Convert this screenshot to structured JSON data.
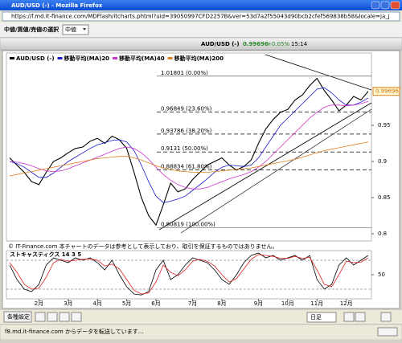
{
  "window": {
    "title": "AUD/USD (-) - Mozilla Firefox",
    "url": "https://f.md.it-finance.com/MDFlash/itcharts.phtml?uid=39050997CFD2257B&ver=53d7a2f55043d90bcb2cfef569838b58&locale=ja_JP&epic=CS.D.AUDUSD.CFJ.IP",
    "status": "f8.md.it-finance.com からデータを転送しています..."
  },
  "toolbar": {
    "price_select_label": "中値/買値/売値の選択",
    "price_select_value": "中値"
  },
  "header": {
    "symbol": "AUD/USD (-)",
    "price": "0.99696",
    "change": "+0.05%",
    "time": "15:14"
  },
  "footer_note": "© IT-Finance.com 本チャートのデータは参考として表示しており、取引を保証するものではありません。",
  "bottom_toolbar": {
    "settings": "各種設定",
    "period": "日足"
  },
  "chart_data": [
    {
      "type": "line",
      "ylim": [
        0.79,
        1.05
      ],
      "yticks": [
        0.8,
        0.85,
        0.9,
        0.95
      ],
      "grid": false,
      "series": [
        {
          "name": "AUD/USD (-)",
          "color": "#000000",
          "values": [
            0.905,
            0.895,
            0.885,
            0.872,
            0.868,
            0.885,
            0.9,
            0.905,
            0.912,
            0.918,
            0.92,
            0.928,
            0.932,
            0.925,
            0.935,
            0.93,
            0.918,
            0.885,
            0.85,
            0.825,
            0.812,
            0.84,
            0.87,
            0.858,
            0.862,
            0.875,
            0.885,
            0.895,
            0.9,
            0.905,
            0.895,
            0.888,
            0.893,
            0.902,
            0.925,
            0.945,
            0.958,
            0.968,
            0.972,
            0.985,
            0.992,
            1.005,
            1.015,
            0.998,
            0.985,
            0.97,
            0.978,
            0.99,
            0.985,
            0.997
          ]
        },
        {
          "name": "移動平均(MA)20",
          "color": "#1a1acc",
          "values": [
            0.9,
            0.897,
            0.892,
            0.885,
            0.878,
            0.878,
            0.884,
            0.892,
            0.9,
            0.906,
            0.912,
            0.918,
            0.923,
            0.926,
            0.929,
            0.93,
            0.927,
            0.915,
            0.895,
            0.872,
            0.852,
            0.843,
            0.845,
            0.848,
            0.852,
            0.86,
            0.868,
            0.876,
            0.885,
            0.892,
            0.895,
            0.894,
            0.893,
            0.895,
            0.905,
            0.92,
            0.935,
            0.95,
            0.96,
            0.97,
            0.98,
            0.99,
            1.0,
            1.002,
            0.995,
            0.985,
            0.978,
            0.978,
            0.982,
            0.988
          ]
        },
        {
          "name": "移動平均(MA)40",
          "color": "#cc33cc",
          "values": [
            0.9,
            0.899,
            0.897,
            0.894,
            0.89,
            0.887,
            0.886,
            0.887,
            0.89,
            0.894,
            0.898,
            0.902,
            0.906,
            0.91,
            0.914,
            0.918,
            0.92,
            0.918,
            0.912,
            0.903,
            0.892,
            0.882,
            0.874,
            0.868,
            0.864,
            0.862,
            0.862,
            0.864,
            0.868,
            0.872,
            0.876,
            0.879,
            0.882,
            0.886,
            0.892,
            0.9,
            0.91,
            0.92,
            0.93,
            0.94,
            0.95,
            0.96,
            0.968,
            0.975,
            0.978,
            0.978,
            0.977,
            0.978,
            0.98,
            0.983
          ]
        },
        {
          "name": "移動平均(MA)200",
          "color": "#e08020",
          "values": [
            0.88,
            0.882,
            0.884,
            0.886,
            0.888,
            0.89,
            0.892,
            0.894,
            0.896,
            0.898,
            0.9,
            0.902,
            0.904,
            0.905,
            0.906,
            0.907,
            0.907,
            0.905,
            0.902,
            0.898,
            0.894,
            0.891,
            0.889,
            0.887,
            0.886,
            0.885,
            0.885,
            0.885,
            0.886,
            0.887,
            0.888,
            0.889,
            0.89,
            0.891,
            0.893,
            0.895,
            0.897,
            0.899,
            0.901,
            0.903,
            0.906,
            0.909,
            0.912,
            0.915,
            0.917,
            0.919,
            0.921,
            0.923,
            0.925,
            0.927
          ]
        }
      ],
      "fib_levels": [
        {
          "value": 1.01801,
          "label": "1.01801 (0.00%)"
        },
        {
          "value": 0.96849,
          "label": "0.96849 (23.60%)"
        },
        {
          "value": 0.93786,
          "label": "0.93786 (38.20%)"
        },
        {
          "value": 0.9131,
          "label": "0.9131 (50.00%)"
        },
        {
          "value": 0.88834,
          "label": "0.88834 (61.80%)"
        },
        {
          "value": 0.80819,
          "label": "0.80819 (100.00%)"
        }
      ]
    },
    {
      "type": "line",
      "title": "ストキャスティクス 14 3 5",
      "categories": [
        null,
        null,
        null,
        null,
        "2月",
        null,
        null,
        null,
        "3月",
        null,
        null,
        null,
        "4月",
        null,
        null,
        null,
        "5月",
        null,
        null,
        null,
        "6月",
        null,
        null,
        null,
        null,
        "7月",
        null,
        null,
        null,
        "8月",
        null,
        null,
        null,
        null,
        "9月",
        null,
        null,
        null,
        "10月",
        null,
        null,
        null,
        "11月",
        null,
        null,
        null,
        "12月",
        null,
        null,
        null
      ],
      "ylim": [
        0,
        100
      ],
      "yticks": [
        50
      ],
      "levels": [
        20,
        80
      ],
      "series": [
        {
          "color": "#000000",
          "values": [
            70,
            40,
            20,
            15,
            30,
            70,
            85,
            80,
            75,
            85,
            80,
            85,
            75,
            60,
            80,
            50,
            25,
            10,
            8,
            15,
            60,
            80,
            40,
            50,
            70,
            85,
            80,
            75,
            60,
            40,
            30,
            50,
            75,
            90,
            95,
            85,
            90,
            80,
            85,
            90,
            80,
            90,
            40,
            20,
            30,
            70,
            85,
            70,
            80,
            90
          ]
        },
        {
          "color": "#dd2222",
          "values": [
            75,
            55,
            30,
            20,
            22,
            45,
            75,
            82,
            78,
            80,
            82,
            83,
            80,
            68,
            72,
            62,
            40,
            18,
            10,
            12,
            35,
            70,
            55,
            48,
            60,
            78,
            82,
            78,
            68,
            50,
            35,
            42,
            62,
            82,
            92,
            90,
            88,
            84,
            84,
            88,
            84,
            86,
            60,
            30,
            25,
            50,
            78,
            75,
            76,
            85
          ]
        }
      ]
    }
  ]
}
